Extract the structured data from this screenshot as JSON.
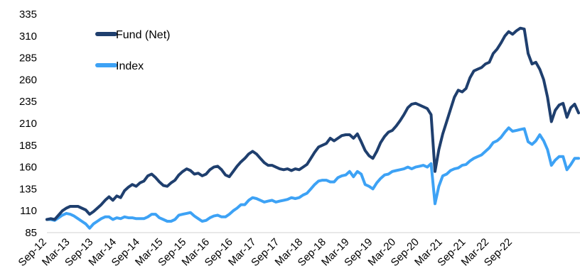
{
  "chart_data": {
    "type": "line",
    "title": "",
    "xlabel": "",
    "ylabel": "",
    "ylim": [
      85,
      335
    ],
    "yticks": [
      85,
      110,
      135,
      160,
      185,
      210,
      235,
      260,
      285,
      310,
      335
    ],
    "grid": false,
    "legend_position": "top-left",
    "x_start": "Sep-12",
    "x_end": "Dec-22",
    "x_tick_labels": [
      "Sep-12",
      "Mar-13",
      "Sep-13",
      "Mar-14",
      "Sep-14",
      "Mar-15",
      "Sep-15",
      "Mar-16",
      "Sep-16",
      "Mar-17",
      "Sep-17",
      "Mar-18",
      "Sep-18",
      "Mar-19",
      "Sep-19",
      "Mar-20",
      "Sep-20",
      "Mar-21",
      "Sep-21",
      "Mar-22",
      "Sep-22"
    ],
    "series": [
      {
        "name": "Fund (Net)",
        "color": "#1f3f6e",
        "values": [
          100,
          101,
          100,
          105,
          110,
          113,
          115,
          115,
          115,
          113,
          111,
          106,
          109,
          113,
          117,
          122,
          126,
          122,
          127,
          125,
          133,
          137,
          140,
          138,
          142,
          144,
          150,
          152,
          148,
          143,
          139,
          138,
          142,
          145,
          151,
          155,
          158,
          156,
          152,
          153,
          150,
          152,
          157,
          160,
          161,
          157,
          151,
          149,
          155,
          161,
          166,
          170,
          175,
          178,
          175,
          170,
          165,
          162,
          162,
          160,
          158,
          157,
          158,
          156,
          158,
          157,
          160,
          163,
          170,
          177,
          183,
          185,
          187,
          193,
          190,
          193,
          196,
          197,
          197,
          193,
          198,
          189,
          179,
          173,
          170,
          178,
          188,
          195,
          200,
          202,
          207,
          213,
          220,
          228,
          232,
          233,
          231,
          229,
          227,
          220,
          155,
          180,
          198,
          212,
          226,
          240,
          248,
          246,
          250,
          262,
          270,
          272,
          274,
          278,
          280,
          290,
          295,
          302,
          310,
          315,
          312,
          316,
          319,
          318,
          290,
          278,
          280,
          272,
          260,
          240,
          212,
          225,
          231,
          233,
          217,
          228,
          232,
          222
        ]
      },
      {
        "name": "Index",
        "color": "#3da2f5",
        "values": [
          100,
          100,
          99,
          102,
          105,
          107,
          106,
          104,
          101,
          98,
          95,
          90,
          95,
          98,
          101,
          103,
          103,
          100,
          102,
          101,
          103,
          102,
          102,
          101,
          101,
          101,
          103,
          106,
          106,
          102,
          100,
          98,
          98,
          100,
          105,
          106,
          107,
          108,
          104,
          101,
          98,
          99,
          102,
          104,
          105,
          103,
          103,
          106,
          110,
          113,
          117,
          117,
          122,
          125,
          124,
          122,
          120,
          121,
          122,
          120,
          121,
          122,
          123,
          125,
          124,
          125,
          128,
          130,
          135,
          140,
          144,
          145,
          145,
          143,
          143,
          148,
          150,
          151,
          155,
          149,
          155,
          152,
          140,
          138,
          135,
          142,
          147,
          151,
          152,
          155,
          156,
          157,
          158,
          160,
          158,
          160,
          161,
          162,
          160,
          164,
          118,
          138,
          150,
          152,
          156,
          158,
          159,
          162,
          163,
          167,
          170,
          172,
          174,
          178,
          182,
          188,
          190,
          194,
          200,
          205,
          201,
          202,
          203,
          204,
          189,
          186,
          190,
          197,
          190,
          180,
          162,
          168,
          172,
          172,
          157,
          163,
          170,
          170
        ]
      }
    ]
  }
}
